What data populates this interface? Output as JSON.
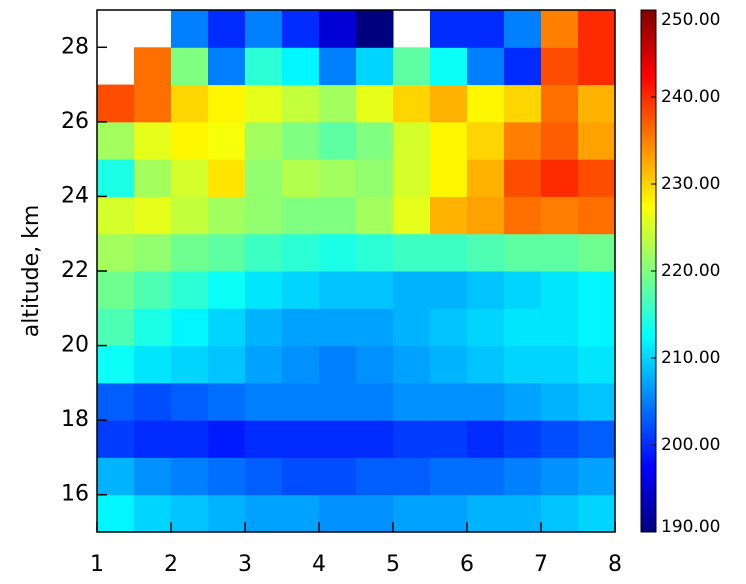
{
  "chart_data": {
    "type": "heatmap",
    "y_label": "altitude, km",
    "xbins": [
      1,
      1.5,
      2,
      2.5,
      3,
      3.5,
      4,
      4.5,
      5,
      5.5,
      6,
      6.5,
      7,
      7.5,
      8
    ],
    "ybins": [
      15,
      16,
      17,
      18,
      19,
      20,
      21,
      22,
      23,
      24,
      25,
      26,
      27,
      28,
      29
    ],
    "z": [
      [
        212,
        210,
        209,
        208,
        207,
        207,
        206,
        206,
        207,
        207,
        208,
        208,
        209,
        210
      ],
      [
        208,
        206,
        205,
        204,
        203,
        202,
        202,
        203,
        203,
        204,
        204,
        205,
        206,
        207
      ],
      [
        201,
        200,
        200,
        199,
        200,
        200,
        200,
        200,
        201,
        201,
        200,
        201,
        202,
        203
      ],
      [
        203,
        202,
        203,
        204,
        205,
        205,
        205,
        205,
        206,
        206,
        206,
        207,
        208,
        209
      ],
      [
        213,
        211,
        210,
        209,
        207,
        206,
        205,
        206,
        207,
        208,
        209,
        210,
        210,
        211
      ],
      [
        217,
        214,
        212,
        210,
        208,
        207,
        207,
        207,
        208,
        209,
        210,
        211,
        211,
        212
      ],
      [
        219,
        217,
        215,
        213,
        211,
        210,
        209,
        209,
        208,
        208,
        209,
        210,
        211,
        212
      ],
      [
        222,
        221,
        219,
        218,
        216,
        215,
        214,
        215,
        216,
        216,
        217,
        218,
        218,
        219
      ],
      [
        225,
        226,
        224,
        222,
        221,
        220,
        220,
        222,
        226,
        232,
        233,
        236,
        235,
        236
      ],
      [
        214,
        222,
        225,
        229,
        221,
        223,
        222,
        221,
        225,
        228,
        232,
        238,
        240,
        238
      ],
      [
        222,
        226,
        228,
        227,
        222,
        220,
        218,
        220,
        225,
        228,
        230,
        235,
        237,
        233
      ],
      [
        238,
        236,
        230,
        228,
        226,
        224,
        222,
        226,
        230,
        232,
        228,
        230,
        236,
        232
      ],
      [
        null,
        236,
        220,
        205,
        215,
        212,
        205,
        210,
        218,
        213,
        205,
        200,
        238,
        240
      ],
      [
        null,
        null,
        205,
        200,
        205,
        200,
        195,
        190,
        null,
        200,
        200,
        205,
        235,
        240
      ]
    ],
    "xlim": [
      1,
      8
    ],
    "ylim": [
      15,
      29
    ],
    "xticks": [
      1,
      2,
      3,
      4,
      5,
      6,
      7,
      8
    ],
    "yticks": [
      16,
      18,
      20,
      22,
      24,
      26,
      28
    ],
    "clim": [
      190,
      250
    ],
    "colorscale": [
      "#00007f",
      "#0000ff",
      "#0080ff",
      "#00ffff",
      "#80ff80",
      "#ffff00",
      "#ff8000",
      "#ff0000",
      "#7f0000"
    ],
    "cticks": [
      {
        "value": 190,
        "label": "190.00"
      },
      {
        "value": 200,
        "label": "200.00"
      },
      {
        "value": 210,
        "label": "210.00"
      },
      {
        "value": 220,
        "label": "220.00"
      },
      {
        "value": 230,
        "label": "230.00"
      },
      {
        "value": 240,
        "label": "240.00"
      },
      {
        "value": 250,
        "label": "250.00"
      }
    ]
  }
}
